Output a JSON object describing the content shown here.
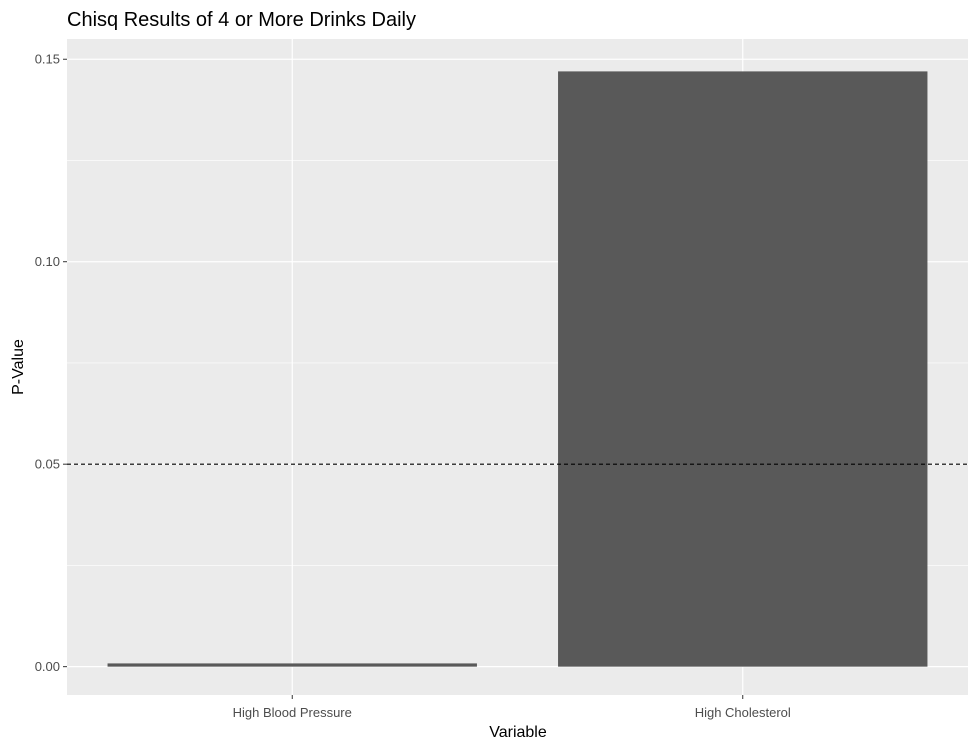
{
  "chart_data": {
    "type": "bar",
    "title": "Chisq Results of 4 or More Drinks Daily",
    "xlabel": "Variable",
    "ylabel": "P-Value",
    "categories": [
      "High Blood Pressure",
      "High Cholesterol"
    ],
    "values": [
      0.0008,
      0.147
    ],
    "ylim": [
      -0.007,
      0.155
    ],
    "yticks": [
      0.0,
      0.05,
      0.1,
      0.15
    ],
    "ytick_labels": [
      "0.00",
      "0.05",
      "0.10",
      "0.15"
    ],
    "reference_line": {
      "y": 0.05,
      "style": "dashed",
      "color": "#000000"
    },
    "grid": true,
    "legend": "none",
    "colors": {
      "panel_background": "#ebebeb",
      "grid_major": "#ffffff",
      "bar_fill": "#595959",
      "tick_text": "#4d4d4d"
    }
  }
}
